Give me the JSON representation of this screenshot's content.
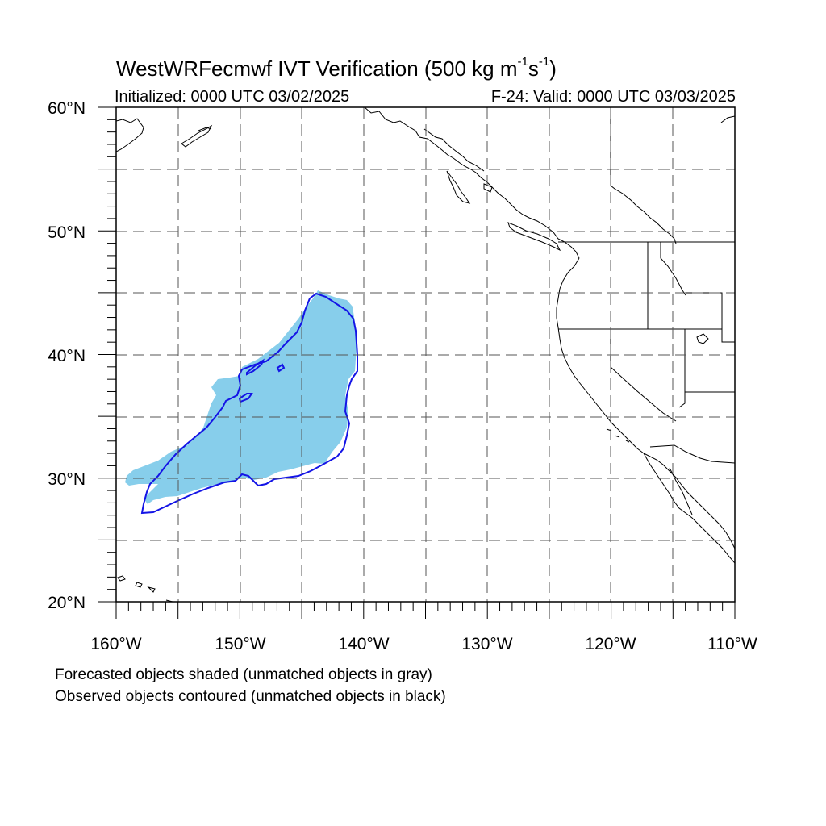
{
  "title": {
    "prefix": "WestWRFecmwf IVT Verification (500 kg m",
    "sup1": "-1",
    "mid": "s",
    "sup2": "-1",
    "suffix": ")"
  },
  "initialized": "Initialized: 0000 UTC 03/02/2025",
  "valid": "F-24: Valid: 0000 UTC 03/03/2025",
  "notes": {
    "forecast": "Forecasted objects shaded (unmatched objects in gray)",
    "observed": "Observed objects contoured (unmatched objects in black)"
  },
  "map": {
    "lon_range": [
      -160,
      -110
    ],
    "lat_range": [
      20,
      60
    ],
    "lon_grid_step": 5,
    "lat_grid_step": 5,
    "lat_labels": [
      "20°N",
      "30°N",
      "40°N",
      "50°N",
      "60°N"
    ],
    "lon_labels": [
      "160°W",
      "150°W",
      "140°W",
      "130°W",
      "120°W",
      "110°W"
    ],
    "colors": {
      "forecast_fill": "#87ceeb",
      "observed_contour": "#1414e6",
      "coastline": "#000000",
      "grid": "#555555"
    }
  }
}
